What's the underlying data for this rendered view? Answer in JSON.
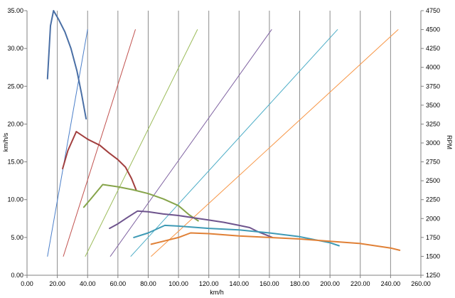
{
  "chart_data": {
    "type": "line",
    "title": "",
    "xlabel": "km/h",
    "ylabel": "km/h/s",
    "y2label": "RPM",
    "xlim": [
      0,
      260
    ],
    "ylim": [
      0,
      35
    ],
    "y2lim": [
      1250,
      4750
    ],
    "x_ticks": [
      "0.00",
      "20.00",
      "40.00",
      "60.00",
      "80.00",
      "100.00",
      "120.00",
      "140.00",
      "160.00",
      "180.00",
      "200.00",
      "220.00",
      "240.00",
      "260.00"
    ],
    "y_ticks": [
      "0.00",
      "5.00",
      "10.00",
      "15.00",
      "20.00",
      "25.00",
      "30.00",
      "35.00"
    ],
    "y2_ticks": [
      "1250",
      "1500",
      "1750",
      "2000",
      "2250",
      "2500",
      "2750",
      "3000",
      "3250",
      "3500",
      "3750",
      "4000",
      "4250",
      "4500",
      "4750"
    ],
    "grid": {
      "vertical": true,
      "horizontal": false
    },
    "legend": "none",
    "series": [
      {
        "axis": "left",
        "color": "#4a6fa5",
        "width": 2,
        "x": [
          13.5,
          15.5,
          17.5,
          21,
          25,
          29,
          33,
          36,
          39
        ],
        "y": [
          26,
          33,
          35,
          33.8,
          32.2,
          30,
          27,
          24,
          20.7
        ]
      },
      {
        "axis": "left",
        "color": "#a23f3e",
        "width": 2,
        "x": [
          23.5,
          27,
          32.5,
          40,
          48,
          54,
          60,
          65,
          69,
          72
        ],
        "y": [
          14.1,
          16.5,
          19,
          18,
          17.2,
          16.2,
          15.3,
          14.3,
          12.8,
          11.3
        ]
      },
      {
        "axis": "left",
        "color": "#86a44a",
        "width": 2,
        "x": [
          37.5,
          43,
          50,
          60,
          70,
          80,
          90,
          100,
          107,
          113
        ],
        "y": [
          9,
          10.3,
          12,
          11.7,
          11.3,
          10.8,
          10.1,
          9.2,
          8,
          7.2
        ]
      },
      {
        "axis": "left",
        "color": "#6e548d",
        "width": 2,
        "x": [
          54.5,
          60,
          66,
          73,
          80,
          90,
          100,
          110,
          120,
          130,
          140,
          147,
          152,
          157,
          162
        ],
        "y": [
          6.2,
          6.8,
          7.6,
          8.5,
          8.4,
          8.1,
          7.9,
          7.6,
          7.3,
          7.0,
          6.6,
          6.3,
          5.8,
          5.4,
          5.0
        ]
      },
      {
        "axis": "left",
        "color": "#3e9ab5",
        "width": 2,
        "x": [
          70.5,
          80,
          91,
          100,
          120,
          140,
          160,
          180,
          200,
          206
        ],
        "y": [
          5.0,
          5.6,
          6.6,
          6.5,
          6.2,
          6.0,
          5.6,
          5.1,
          4.3,
          3.9
        ]
      },
      {
        "axis": "left",
        "color": "#e08036",
        "width": 2,
        "x": [
          82,
          90,
          100,
          108,
          120,
          140,
          160,
          180,
          200,
          220,
          240,
          246
        ],
        "y": [
          4.1,
          4.5,
          5.0,
          5.6,
          5.5,
          5.2,
          5.0,
          4.8,
          4.5,
          4.2,
          3.6,
          3.3
        ]
      },
      {
        "axis": "right",
        "color": "#4a7ec9",
        "width": 1,
        "x": [
          13.5,
          40
        ],
        "y": [
          1500,
          4500
        ]
      },
      {
        "axis": "right",
        "color": "#c0504d",
        "width": 1,
        "x": [
          24,
          71.5
        ],
        "y": [
          1500,
          4500
        ]
      },
      {
        "axis": "right",
        "color": "#9bbb59",
        "width": 1,
        "x": [
          38.5,
          112.5
        ],
        "y": [
          1500,
          4500
        ]
      },
      {
        "axis": "right",
        "color": "#8064a2",
        "width": 1,
        "x": [
          55,
          161.5
        ],
        "y": [
          1500,
          4500
        ]
      },
      {
        "axis": "right",
        "color": "#4bacc6",
        "width": 1,
        "x": [
          68.5,
          205
        ],
        "y": [
          1500,
          4500
        ]
      },
      {
        "axis": "right",
        "color": "#f79646",
        "width": 1,
        "x": [
          82,
          245
        ],
        "y": [
          1500,
          4500
        ]
      }
    ]
  }
}
